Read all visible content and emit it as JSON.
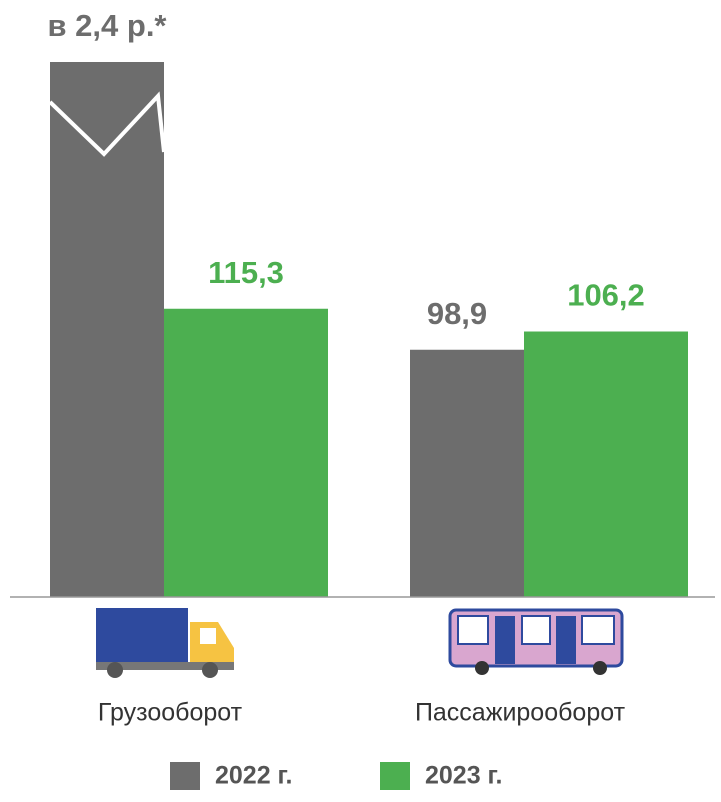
{
  "chart_data": {
    "type": "bar",
    "categories": [
      "Грузооборот",
      "Пассажирооборот"
    ],
    "series": [
      {
        "name": "2022 г.",
        "color": "#6d6d6d",
        "values": [
          240,
          98.9
        ],
        "value_labels": [
          "в 2,4 р.*",
          "98,9"
        ]
      },
      {
        "name": "2023 г.",
        "color": "#4caf50",
        "values": [
          115.3,
          106.2
        ],
        "value_labels": [
          "115,3",
          "106,2"
        ]
      }
    ]
  }
}
